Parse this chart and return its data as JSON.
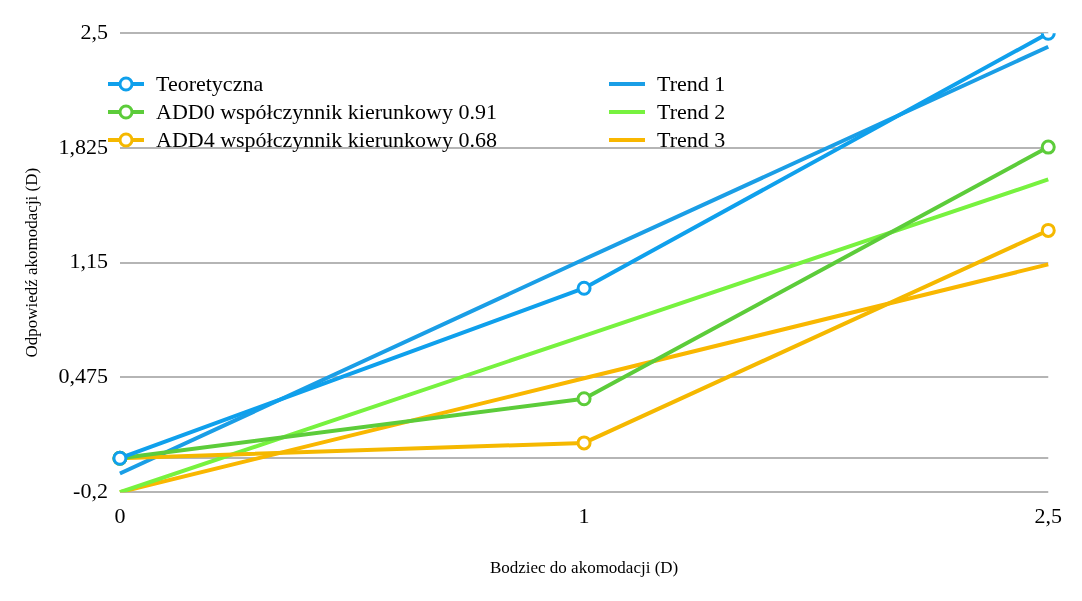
{
  "chart_data": {
    "type": "line",
    "xlabel": "Bodziec do akomodacji (D)",
    "ylabel": "Odpowiedź akomodacji (D)",
    "categories": [
      "0",
      "1",
      "2,5"
    ],
    "ylim": [
      -0.2,
      2.5
    ],
    "yticks": [
      {
        "value": -0.2,
        "label": "-0,2"
      },
      {
        "value": 0,
        "label": null
      },
      {
        "value": 0.475,
        "label": "0,475"
      },
      {
        "value": 1.15,
        "label": "1,15"
      },
      {
        "value": 1.825,
        "label": "1,825"
      },
      {
        "value": 2.5,
        "label": "2,5"
      }
    ],
    "grid": "y",
    "legend": "top",
    "series": [
      {
        "name": "Teoretyczna",
        "color": "#0fa0ec",
        "values": [
          0,
          1,
          2.5
        ],
        "marker": "circle"
      },
      {
        "name": "ADD0 współczynnik kierunkowy 0.91",
        "color": "#5ccc3a",
        "values": [
          0,
          0.35,
          1.83
        ],
        "marker": "circle"
      },
      {
        "name": "ADD4 współczynnik kierunkowy 0.68",
        "color": "#f5b800",
        "values": [
          0,
          0.09,
          1.34
        ],
        "marker": "circle"
      },
      {
        "name": "Trend 1",
        "color": "#1a9ee6",
        "values": [
          -0.09,
          1.17,
          2.42
        ],
        "marker": "none"
      },
      {
        "name": "Trend 2",
        "color": "#77f23f",
        "values": [
          -0.2,
          0.72,
          1.64
        ],
        "marker": "none"
      },
      {
        "name": "Trend 3",
        "color": "#f9b700",
        "values": [
          -0.2,
          0.47,
          1.14
        ],
        "marker": "none"
      }
    ]
  }
}
